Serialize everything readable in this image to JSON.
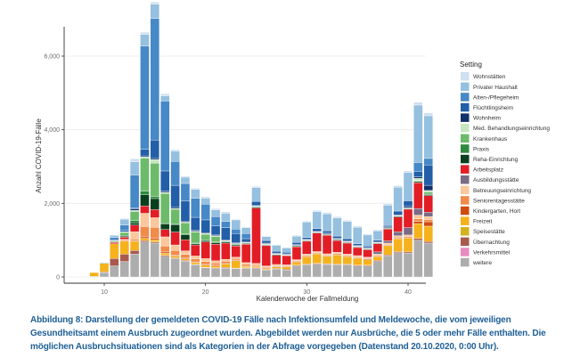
{
  "chart_data": {
    "type": "bar",
    "stacked": true,
    "title": "",
    "xlabel": "Kalenderwoche der Fallmeldung",
    "ylabel": "Anzahl COVID-19-Fälle",
    "xlim": [
      8,
      43
    ],
    "ylim": [
      0,
      6800
    ],
    "xticks": [
      10,
      20,
      30,
      40
    ],
    "yticks": [
      0,
      2000,
      4000,
      6000
    ],
    "ytick_labels": [
      "0",
      "2,000",
      "4,000",
      "6,000"
    ],
    "grid": true,
    "legend_title": "Setting",
    "legend_position": "right",
    "x": [
      9,
      10,
      11,
      12,
      13,
      14,
      15,
      16,
      17,
      18,
      19,
      20,
      21,
      22,
      23,
      24,
      25,
      26,
      27,
      28,
      29,
      30,
      31,
      32,
      33,
      34,
      35,
      36,
      37,
      38,
      39,
      40,
      41,
      42
    ],
    "series": [
      {
        "name": "weitere",
        "color": "#adadad",
        "values": [
          20,
          120,
          300,
          420,
          620,
          950,
          920,
          560,
          500,
          430,
          330,
          250,
          230,
          240,
          230,
          240,
          230,
          190,
          210,
          190,
          300,
          330,
          350,
          340,
          330,
          330,
          300,
          300,
          420,
          570,
          660,
          650,
          1000,
          920
        ]
      },
      {
        "name": "Verkehrsmittel",
        "color": "#e98ac0",
        "values": [
          0,
          0,
          0,
          0,
          0,
          0,
          0,
          0,
          0,
          0,
          0,
          0,
          0,
          0,
          0,
          0,
          0,
          0,
          0,
          0,
          0,
          0,
          0,
          0,
          0,
          0,
          0,
          0,
          0,
          0,
          0,
          0,
          0,
          0
        ]
      },
      {
        "name": "Übernachtung",
        "color": "#a85a4e",
        "values": [
          0,
          20,
          200,
          200,
          100,
          40,
          30,
          30,
          20,
          20,
          10,
          10,
          20,
          20,
          10,
          10,
          20,
          10,
          20,
          20,
          20,
          20,
          20,
          20,
          20,
          20,
          20,
          20,
          30,
          30,
          30,
          30,
          50,
          40
        ]
      },
      {
        "name": "Speisestätte",
        "color": "#d4b11e",
        "values": [
          0,
          0,
          0,
          0,
          0,
          0,
          0,
          0,
          0,
          0,
          0,
          0,
          0,
          0,
          0,
          0,
          0,
          0,
          0,
          0,
          0,
          0,
          0,
          0,
          0,
          0,
          0,
          0,
          0,
          0,
          0,
          0,
          0,
          0
        ]
      },
      {
        "name": "Freizeit",
        "color": "#f5b21d",
        "values": [
          100,
          230,
          400,
          350,
          250,
          60,
          60,
          60,
          50,
          40,
          50,
          60,
          50,
          100,
          200,
          40,
          30,
          30,
          40,
          60,
          80,
          200,
          250,
          200,
          250,
          200,
          190,
          150,
          100,
          250,
          350,
          380,
          400,
          420
        ]
      },
      {
        "name": "Kindergarten, Hort",
        "color": "#cf4b10",
        "values": [
          0,
          0,
          0,
          0,
          20,
          40,
          40,
          30,
          20,
          20,
          20,
          20,
          20,
          20,
          20,
          20,
          20,
          20,
          20,
          20,
          20,
          20,
          20,
          20,
          20,
          20,
          20,
          20,
          20,
          20,
          20,
          20,
          60,
          120
        ]
      },
      {
        "name": "Seniorentagesstätte",
        "color": "#f18b4a",
        "values": [
          0,
          0,
          0,
          30,
          40,
          280,
          300,
          160,
          130,
          100,
          80,
          80,
          60,
          50,
          40,
          40,
          30,
          20,
          20,
          20,
          20,
          20,
          20,
          20,
          20,
          20,
          20,
          20,
          20,
          20,
          20,
          20,
          70,
          60
        ]
      },
      {
        "name": "Betreuungseinrichtung",
        "color": "#fbc79c",
        "values": [
          0,
          0,
          0,
          20,
          200,
          360,
          260,
          250,
          150,
          100,
          80,
          80,
          60,
          50,
          40,
          40,
          40,
          30,
          30,
          20,
          30,
          30,
          30,
          30,
          30,
          30,
          30,
          30,
          30,
          30,
          40,
          40,
          100,
          80
        ]
      },
      {
        "name": "Ausbildungsstätte",
        "color": "#7b6b84",
        "values": [
          0,
          0,
          0,
          0,
          0,
          0,
          0,
          0,
          0,
          0,
          0,
          0,
          0,
          0,
          0,
          0,
          0,
          0,
          0,
          0,
          0,
          0,
          0,
          0,
          0,
          0,
          0,
          0,
          60,
          60,
          110,
          200,
          180,
          120
        ]
      },
      {
        "name": "Arbeitsplatz",
        "color": "#e21d25",
        "values": [
          0,
          0,
          40,
          60,
          180,
          200,
          220,
          200,
          350,
          300,
          300,
          450,
          450,
          440,
          300,
          500,
          1500,
          550,
          250,
          250,
          350,
          350,
          500,
          500,
          320,
          300,
          220,
          200,
          220,
          320,
          400,
          500,
          700,
          450
        ]
      },
      {
        "name": "Reha-Einrichtung",
        "color": "#0a3f1e",
        "values": [
          0,
          0,
          10,
          30,
          60,
          300,
          300,
          150,
          200,
          140,
          30,
          40,
          40,
          30,
          30,
          20,
          30,
          20,
          20,
          10,
          20,
          20,
          20,
          20,
          20,
          20,
          20,
          20,
          20,
          20,
          20,
          20,
          30,
          30
        ]
      },
      {
        "name": "Praxis",
        "color": "#2f8a3f",
        "values": [
          0,
          0,
          20,
          20,
          60,
          100,
          60,
          30,
          20,
          20,
          20,
          20,
          20,
          20,
          20,
          10,
          10,
          10,
          10,
          10,
          10,
          10,
          10,
          10,
          10,
          10,
          10,
          10,
          10,
          10,
          10,
          10,
          10,
          10
        ]
      },
      {
        "name": "Krankenhaus",
        "color": "#6dbb6a",
        "values": [
          0,
          0,
          20,
          80,
          250,
          900,
          900,
          800,
          400,
          300,
          300,
          150,
          150,
          0,
          0,
          0,
          0,
          0,
          0,
          0,
          0,
          0,
          0,
          0,
          0,
          0,
          0,
          0,
          0,
          0,
          0,
          0,
          20,
          60
        ]
      },
      {
        "name": "Med. Behandlungseinrichtung",
        "color": "#c7e6c0",
        "values": [
          0,
          0,
          0,
          20,
          30,
          30,
          100,
          30,
          20,
          20,
          20,
          20,
          20,
          20,
          20,
          20,
          20,
          20,
          10,
          10,
          10,
          10,
          10,
          10,
          10,
          10,
          10,
          10,
          10,
          10,
          10,
          10,
          60,
          40
        ]
      },
      {
        "name": "Wohnheim",
        "color": "#12306b",
        "values": [
          0,
          0,
          0,
          0,
          40,
          30,
          30,
          30,
          30,
          30,
          30,
          20,
          20,
          20,
          20,
          20,
          20,
          20,
          20,
          20,
          20,
          20,
          20,
          20,
          20,
          20,
          20,
          20,
          20,
          20,
          20,
          40,
          40,
          140
        ]
      },
      {
        "name": "Flüchtlingsheim",
        "color": "#225fa8",
        "values": [
          0,
          0,
          20,
          40,
          20,
          180,
          500,
          550,
          600,
          540,
          350,
          350,
          250,
          330,
          250,
          80,
          100,
          70,
          50,
          40,
          60,
          40,
          60,
          60,
          60,
          60,
          40,
          40,
          40,
          40,
          100,
          150,
          150,
          550
        ]
      },
      {
        "name": "Alten-/Pflegeheim",
        "color": "#4788c7",
        "values": [
          0,
          0,
          60,
          140,
          900,
          2800,
          3300,
          1900,
          650,
          480,
          520,
          430,
          250,
          170,
          120,
          140,
          0,
          0,
          0,
          0,
          0,
          0,
          0,
          0,
          0,
          0,
          0,
          0,
          0,
          0,
          0,
          0,
          240,
          180
        ]
      },
      {
        "name": "Privater Haushalt",
        "color": "#95c0df",
        "values": [
          0,
          20,
          60,
          160,
          360,
          320,
          390,
          140,
          280,
          170,
          240,
          160,
          180,
          220,
          250,
          160,
          380,
          110,
          160,
          120,
          170,
          420,
          460,
          460,
          490,
          470,
          450,
          300,
          250,
          550,
          650,
          770,
          1560,
          1160
        ]
      },
      {
        "name": "Wohnstätten",
        "color": "#cfe0f0",
        "values": [
          0,
          0,
          10,
          20,
          80,
          60,
          60,
          60,
          40,
          30,
          30,
          40,
          40,
          40,
          20,
          20,
          30,
          10,
          20,
          10,
          20,
          30,
          40,
          40,
          40,
          30,
          30,
          30,
          30,
          40,
          40,
          40,
          80,
          80
        ]
      }
    ]
  },
  "caption": "Abbildung 8: Darstellung der gemeldeten COVID-19 Fälle nach Infektionsumfeld und Meldewoche, die vom jeweiligen Gesundheitsamt einem Ausbruch zugeordnet wurden. Abgebildet werden nur Ausbrüche, die 5 oder mehr Fälle enthalten. Die möglichen Ausbruchsituationen sind als Kategorien in der Abfrage vorgegeben (Datenstand 20.10.2020, 0:00 Uhr)."
}
